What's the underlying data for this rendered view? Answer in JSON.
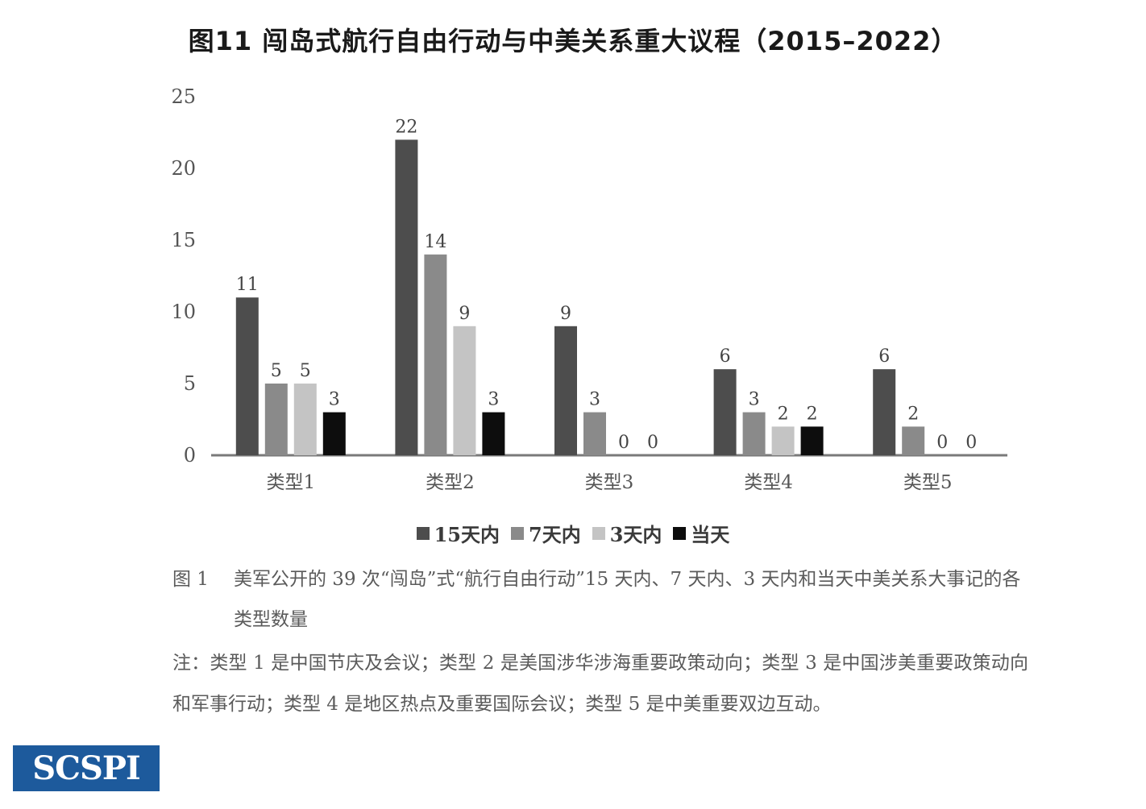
{
  "title": "图11 闯岛式航行自由行动与中美关系重大议程（2015–2022）",
  "chart_data": {
    "type": "bar",
    "categories": [
      "类型1",
      "类型2",
      "类型3",
      "类型4",
      "类型5"
    ],
    "series": [
      {
        "name": "15天内",
        "values": [
          11,
          22,
          9,
          6,
          6
        ],
        "color": "#4d4d4d"
      },
      {
        "name": "7天内",
        "values": [
          5,
          14,
          3,
          3,
          2
        ],
        "color": "#8a8a8a"
      },
      {
        "name": "3天内",
        "values": [
          5,
          9,
          0,
          2,
          0
        ],
        "color": "#c4c4c4"
      },
      {
        "name": "当天",
        "values": [
          3,
          3,
          0,
          2,
          0
        ],
        "color": "#0d0d0d"
      }
    ],
    "yticks": [
      0,
      5,
      10,
      15,
      20,
      25
    ],
    "ylim": [
      0,
      25
    ],
    "legend_position": "bottom"
  },
  "caption": {
    "label": "图 1",
    "text": "美军公开的 39 次“闯岛”式“航行自由行动”15 天内、7 天内、3 天内和当天中美关系大事记的各类型数量"
  },
  "note": "注：类型 1 是中国节庆及会议；类型 2 是美国涉华涉海重要政策动向；类型 3 是中国涉美重要政策动向和军事行动；类型 4 是地区热点及重要国际会议；类型 5 是中美重要双边互动。",
  "logo": {
    "text": "SCSPI",
    "color": "#1d5a9c"
  }
}
